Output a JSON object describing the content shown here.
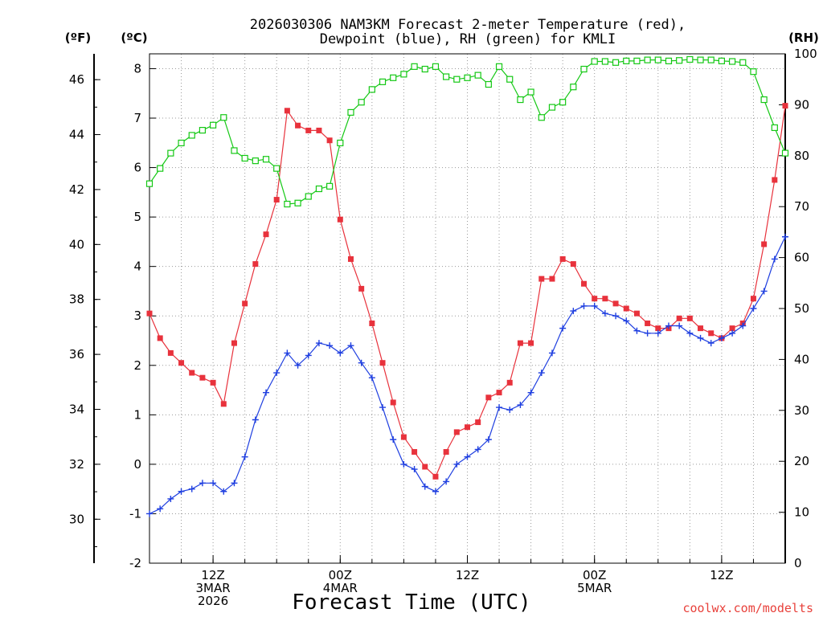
{
  "chart_data": {
    "type": "line",
    "title_line1": "2026030306 NAM3KM Forecast 2-meter Temperature (red),",
    "title_line2": "Dewpoint (blue), RH (green) for KMLI",
    "xlabel": "Forecast Time (UTC)",
    "left_outer_unit": "(ºF)",
    "left_inner_unit": "(ºC)",
    "right_unit": "(RH)",
    "watermark": "coolwx.com/modelts",
    "xlim": [
      6,
      66
    ],
    "ylim_c": [
      -2,
      8.3
    ],
    "ylim_rh": [
      0,
      100
    ],
    "y_ticks_c": [
      "-2",
      "-1",
      "0",
      "1",
      "2",
      "3",
      "4",
      "5",
      "6",
      "7",
      "8"
    ],
    "y_ticks_f": [
      "30",
      "32",
      "34",
      "36",
      "38",
      "40",
      "42",
      "44",
      "46"
    ],
    "y_ticks_rh": [
      "0",
      "10",
      "20",
      "30",
      "40",
      "50",
      "60",
      "70",
      "80",
      "90",
      "100"
    ],
    "x_ticks": [
      {
        "hour": 12,
        "lines": [
          "12Z",
          "3MAR",
          "2026"
        ]
      },
      {
        "hour": 24,
        "lines": [
          "00Z",
          "4MAR"
        ]
      },
      {
        "hour": 36,
        "lines": [
          "12Z"
        ]
      },
      {
        "hour": 48,
        "lines": [
          "00Z",
          "5MAR"
        ]
      },
      {
        "hour": 60,
        "lines": [
          "12Z"
        ]
      }
    ],
    "x_hours": [
      6,
      7,
      8,
      9,
      10,
      11,
      12,
      13,
      14,
      15,
      16,
      17,
      18,
      19,
      20,
      21,
      22,
      23,
      24,
      25,
      26,
      27,
      28,
      29,
      30,
      31,
      32,
      33,
      34,
      35,
      36,
      37,
      38,
      39,
      40,
      41,
      42,
      43,
      44,
      45,
      46,
      47,
      48,
      49,
      50,
      51,
      52,
      53,
      54,
      55,
      56,
      57,
      58,
      59,
      60,
      61,
      62,
      63,
      64,
      65,
      66
    ],
    "series": [
      {
        "name": "Temperature (ºC)",
        "color": "#e8323c",
        "marker": "filled-square",
        "axis": "celsius",
        "values": [
          3.05,
          2.55,
          2.25,
          2.05,
          1.85,
          1.75,
          1.65,
          1.22,
          2.45,
          3.25,
          4.05,
          4.65,
          5.35,
          7.15,
          6.85,
          6.75,
          6.75,
          6.55,
          4.95,
          4.15,
          3.55,
          2.85,
          2.05,
          1.25,
          0.55,
          0.25,
          -0.05,
          -0.25,
          0.25,
          0.65,
          0.75,
          0.85,
          1.35,
          1.45,
          1.65,
          2.45,
          2.45,
          3.75,
          3.75,
          4.15,
          4.05,
          3.65,
          3.35,
          3.35,
          3.25,
          3.15,
          3.05,
          2.85,
          2.75,
          2.75,
          2.95,
          2.95,
          2.75,
          2.65,
          2.55,
          2.75,
          2.85,
          3.35,
          4.45,
          5.75,
          7.25
        ]
      },
      {
        "name": "Dewpoint (ºC)",
        "color": "#1f3fe0",
        "marker": "plus",
        "axis": "celsius",
        "values": [
          -1.0,
          -0.9,
          -0.7,
          -0.55,
          -0.5,
          -0.38,
          -0.38,
          -0.55,
          -0.38,
          0.15,
          0.9,
          1.45,
          1.85,
          2.25,
          2.0,
          2.2,
          2.45,
          2.4,
          2.25,
          2.4,
          2.05,
          1.75,
          1.15,
          0.5,
          0.0,
          -0.1,
          -0.45,
          -0.55,
          -0.35,
          0.0,
          0.15,
          0.3,
          0.5,
          1.15,
          1.1,
          1.2,
          1.45,
          1.85,
          2.25,
          2.75,
          3.1,
          3.2,
          3.2,
          3.05,
          3.0,
          2.9,
          2.7,
          2.65,
          2.65,
          2.8,
          2.8,
          2.65,
          2.55,
          2.45,
          2.55,
          2.65,
          2.8,
          3.15,
          3.5,
          4.15,
          4.6
        ]
      },
      {
        "name": "Relative Humidity (%)",
        "color": "#14c814",
        "marker": "open-square",
        "axis": "rh",
        "values": [
          74.5,
          77.5,
          80.5,
          82.5,
          84.0,
          85.0,
          86.0,
          87.5,
          81.0,
          79.5,
          79.0,
          79.3,
          77.5,
          70.5,
          70.7,
          72.0,
          73.5,
          74.0,
          82.5,
          88.5,
          90.5,
          93.0,
          94.5,
          95.3,
          96.0,
          97.5,
          97.0,
          97.5,
          95.5,
          95.0,
          95.3,
          95.8,
          94.0,
          97.5,
          95.0,
          91.0,
          92.5,
          87.5,
          89.5,
          90.5,
          93.5,
          97.0,
          98.5,
          98.5,
          98.3,
          98.6,
          98.6,
          98.8,
          98.8,
          98.6,
          98.7,
          98.9,
          98.8,
          98.8,
          98.6,
          98.5,
          98.3,
          96.5,
          91.0,
          85.5,
          80.5
        ]
      }
    ]
  }
}
